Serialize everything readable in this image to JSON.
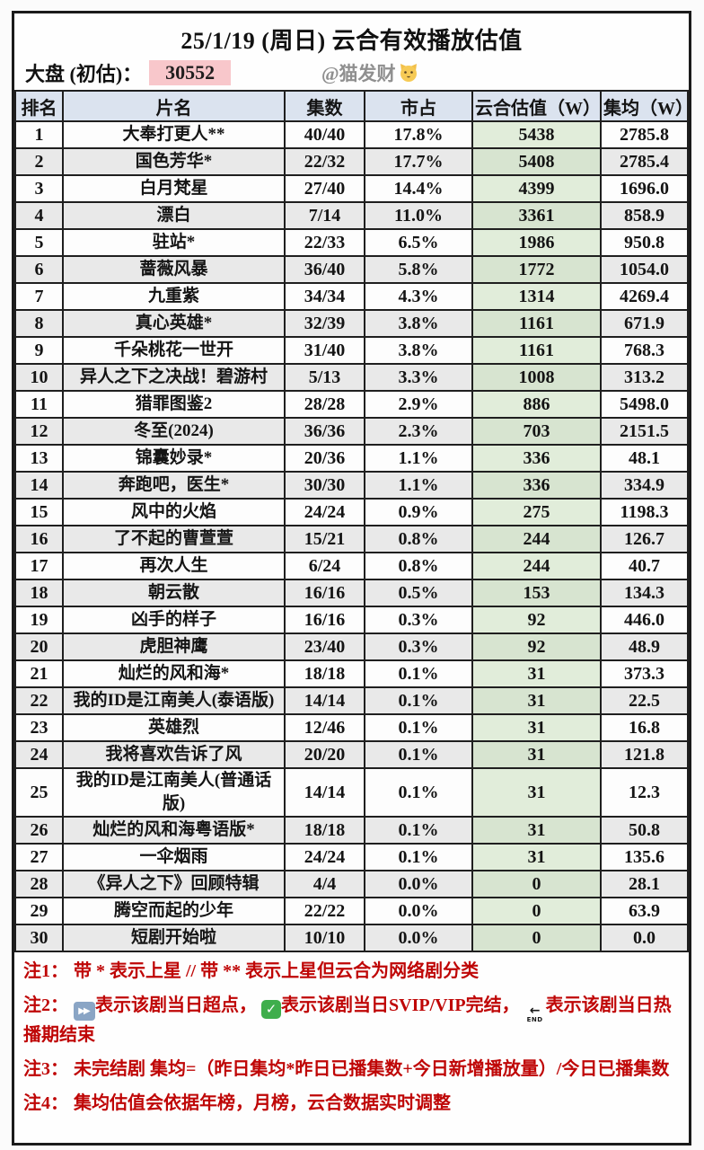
{
  "title": "25/1/19 (周日) 云合有效播放估值",
  "market": {
    "label": "大盘 (初估)：",
    "value": "30552",
    "credit": "@猫发财",
    "credit_icon": "cat-face-icon"
  },
  "table": {
    "headers": [
      "排名",
      "片名",
      "集数",
      "市占",
      "云合估值（W）",
      "集均（W）"
    ],
    "rows": [
      [
        "1",
        "大奉打更人**",
        "40/40",
        "17.8%",
        "5438",
        "2785.8"
      ],
      [
        "2",
        "国色芳华*",
        "22/32",
        "17.7%",
        "5408",
        "2785.4"
      ],
      [
        "3",
        "白月梵星",
        "27/40",
        "14.4%",
        "4399",
        "1696.0"
      ],
      [
        "4",
        "漂白",
        "7/14",
        "11.0%",
        "3361",
        "858.9"
      ],
      [
        "5",
        "驻站*",
        "22/33",
        "6.5%",
        "1986",
        "950.8"
      ],
      [
        "6",
        "蔷薇风暴",
        "36/40",
        "5.8%",
        "1772",
        "1054.0"
      ],
      [
        "7",
        "九重紫",
        "34/34",
        "4.3%",
        "1314",
        "4269.4"
      ],
      [
        "8",
        "真心英雄*",
        "32/39",
        "3.8%",
        "1161",
        "671.9"
      ],
      [
        "9",
        "千朵桃花一世开",
        "31/40",
        "3.8%",
        "1161",
        "768.3"
      ],
      [
        "10",
        "异人之下之决战！碧游村",
        "5/13",
        "3.3%",
        "1008",
        "313.2"
      ],
      [
        "11",
        "猎罪图鉴2",
        "28/28",
        "2.9%",
        "886",
        "5498.0"
      ],
      [
        "12",
        "冬至(2024)",
        "36/36",
        "2.3%",
        "703",
        "2151.5"
      ],
      [
        "13",
        "锦囊妙录*",
        "20/36",
        "1.1%",
        "336",
        "48.1"
      ],
      [
        "14",
        "奔跑吧，医生*",
        "30/30",
        "1.1%",
        "336",
        "334.9"
      ],
      [
        "15",
        "风中的火焰",
        "24/24",
        "0.9%",
        "275",
        "1198.3"
      ],
      [
        "16",
        "了不起的曹萱萱",
        "15/21",
        "0.8%",
        "244",
        "126.7"
      ],
      [
        "17",
        "再次人生",
        "6/24",
        "0.8%",
        "244",
        "40.7"
      ],
      [
        "18",
        "朝云散",
        "16/16",
        "0.5%",
        "153",
        "134.3"
      ],
      [
        "19",
        "凶手的样子",
        "16/16",
        "0.3%",
        "92",
        "446.0"
      ],
      [
        "20",
        "虎胆神鹰",
        "23/40",
        "0.3%",
        "92",
        "48.9"
      ],
      [
        "21",
        "灿烂的风和海*",
        "18/18",
        "0.1%",
        "31",
        "373.3"
      ],
      [
        "22",
        "我的ID是江南美人(泰语版)",
        "14/14",
        "0.1%",
        "31",
        "22.5"
      ],
      [
        "23",
        "英雄烈",
        "12/46",
        "0.1%",
        "31",
        "16.8"
      ],
      [
        "24",
        "我将喜欢告诉了风",
        "20/20",
        "0.1%",
        "31",
        "121.8"
      ],
      [
        "25",
        "我的ID是江南美人(普通话版)",
        "14/14",
        "0.1%",
        "31",
        "12.3"
      ],
      [
        "26",
        "灿烂的风和海粤语版*",
        "18/18",
        "0.1%",
        "31",
        "50.8"
      ],
      [
        "27",
        "一伞烟雨",
        "24/24",
        "0.1%",
        "31",
        "135.6"
      ],
      [
        "28",
        "《异人之下》回顾特辑",
        "4/4",
        "0.0%",
        "0",
        "28.1"
      ],
      [
        "29",
        "腾空而起的少年",
        "22/22",
        "0.0%",
        "0",
        "63.9"
      ],
      [
        "30",
        "短剧开始啦",
        "10/10",
        "0.0%",
        "0",
        "0.0"
      ]
    ]
  },
  "notes": [
    {
      "label": "注1：",
      "segments": [
        {
          "text": "带 * 表示上星 // 带 ** 表示上星但云合为网络剧分类"
        }
      ]
    },
    {
      "label": "注2：",
      "segments": [
        {
          "icon": "fast-forward-icon"
        },
        {
          "text": "表示该剧当日超点， "
        },
        {
          "icon": "svip-check-icon"
        },
        {
          "text": "表示该剧当日SVIP/VIP完结， "
        },
        {
          "icon": "end-icon"
        },
        {
          "text": "表示该剧当日热播期结束"
        }
      ]
    },
    {
      "label": "注3：",
      "segments": [
        {
          "text": "未完结剧 集均=（昨日集均*昨日已播集数+今日新增播放量）/今日已播集数"
        }
      ]
    },
    {
      "label": "注4：",
      "segments": [
        {
          "text": "集均估值会依据年榜，月榜，云合数据实时调整"
        }
      ]
    }
  ],
  "colors": {
    "header_bg": "#dbe3ef",
    "row_alt_bg": "#e9e9e9",
    "estimate_col_bg": "#e1edda",
    "highlight_pink": "#f8c7cb",
    "note_red": "#bf0606",
    "border": "#1f1f1f"
  }
}
